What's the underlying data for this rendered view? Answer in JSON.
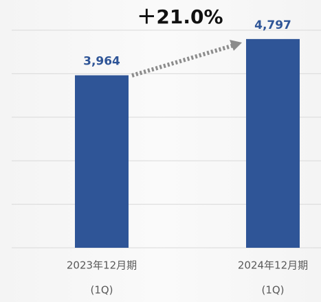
{
  "chart_data": {
    "type": "bar",
    "categories": [
      [
        "2023年12月期",
        "(1Q)"
      ],
      [
        "2024年12月期",
        "(1Q)"
      ]
    ],
    "values": [
      3964,
      4797
    ],
    "value_labels": [
      "3,964",
      "4,797"
    ],
    "color": "#2f5597",
    "ylim": [
      0,
      5000
    ],
    "yticks": [
      0,
      1000,
      2000,
      3000,
      4000,
      5000
    ],
    "grid": true,
    "annotation": "＋21.0%"
  }
}
